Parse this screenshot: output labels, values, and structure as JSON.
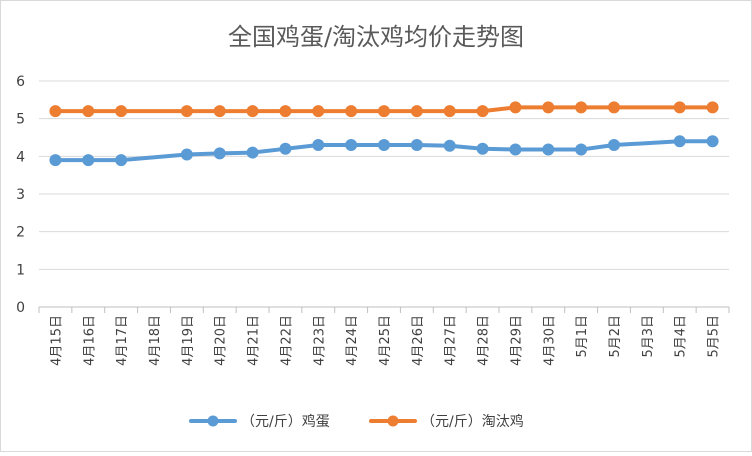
{
  "chart_data": {
    "type": "line",
    "title": "全国鸡蛋/淘汰鸡均价走势图",
    "xlabel": "",
    "ylabel": "",
    "ylim": [
      0,
      6
    ],
    "yticks": [
      "0",
      "1",
      "2",
      "3",
      "4",
      "5",
      "6"
    ],
    "grid": true,
    "legend_position": "bottom",
    "categories": [
      "4月15日",
      "4月16日",
      "4月17日",
      "4月18日",
      "4月19日",
      "4月20日",
      "4月21日",
      "4月22日",
      "4月23日",
      "4月24日",
      "4月25日",
      "4月26日",
      "4月27日",
      "4月28日",
      "4月29日",
      "4月30日",
      "5月1日",
      "5月2日",
      "5月3日",
      "5月4日",
      "5月5日"
    ],
    "series": [
      {
        "name": "（元/斤）鸡蛋",
        "color": "#5b9bd5",
        "values": [
          3.9,
          3.9,
          3.9,
          null,
          4.05,
          4.08,
          4.1,
          4.2,
          4.3,
          4.3,
          4.3,
          4.3,
          4.28,
          4.2,
          4.18,
          4.18,
          4.18,
          4.3,
          null,
          4.4,
          4.4
        ]
      },
      {
        "name": "（元/斤）淘汰鸡",
        "color": "#ed7d31",
        "values": [
          5.2,
          5.2,
          5.2,
          null,
          5.2,
          5.2,
          5.2,
          5.2,
          5.2,
          5.2,
          5.2,
          5.2,
          5.2,
          5.2,
          5.3,
          5.3,
          5.3,
          5.3,
          null,
          5.3,
          5.3
        ]
      }
    ]
  }
}
